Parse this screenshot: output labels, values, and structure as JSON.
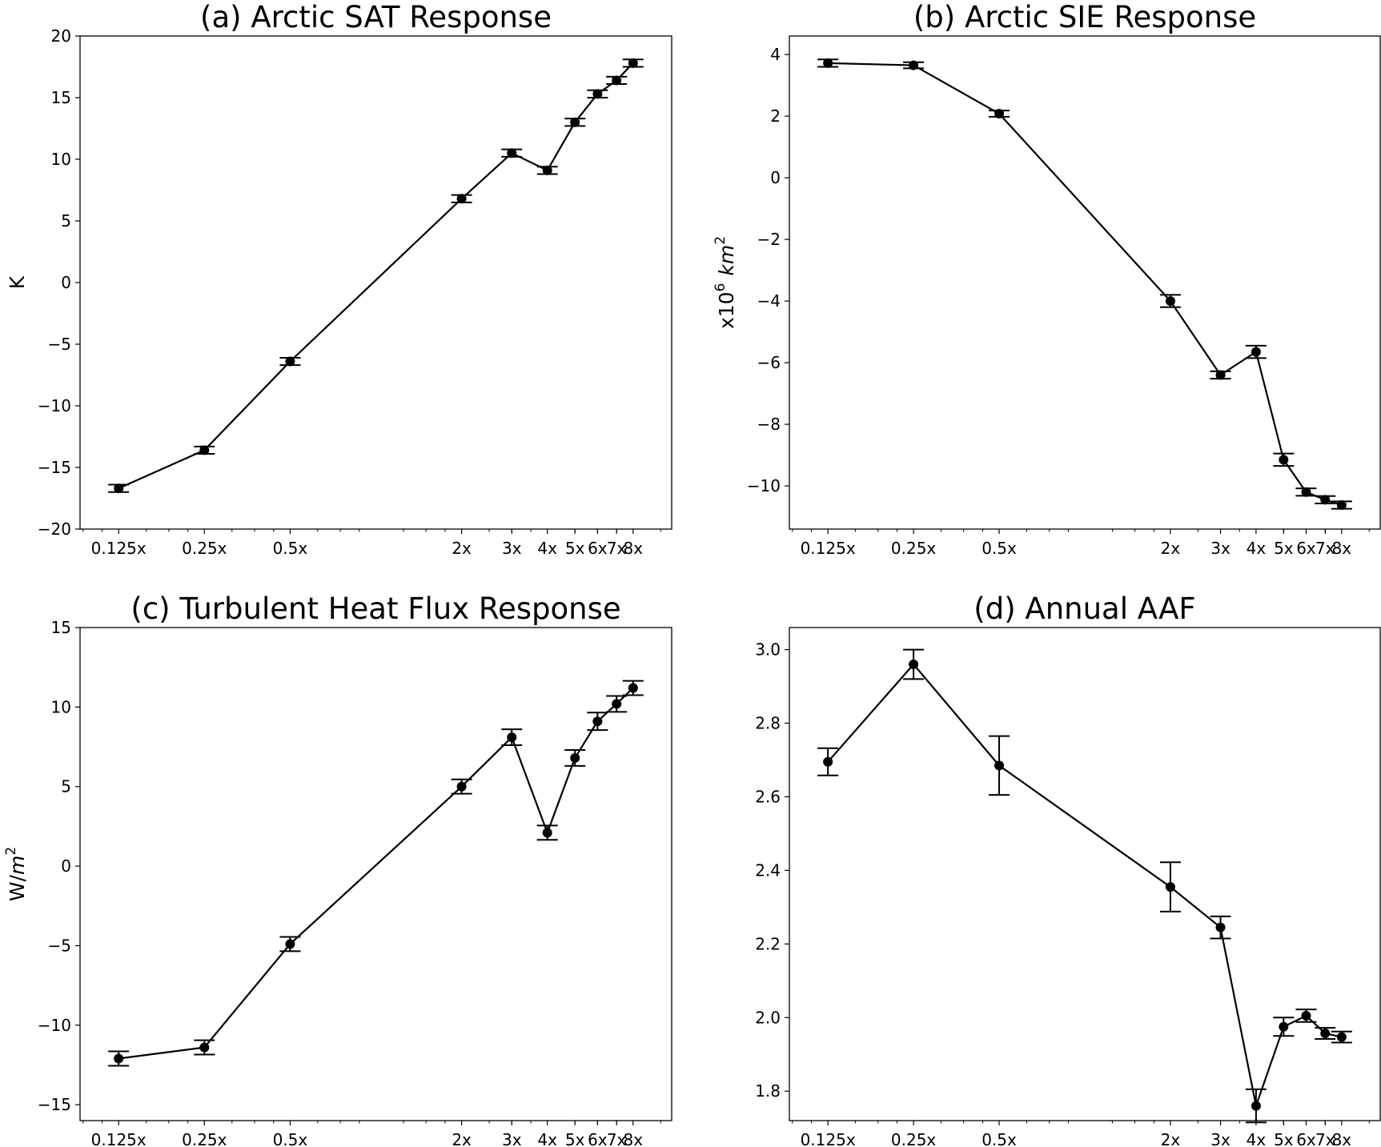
{
  "chart_data": [
    {
      "type": "line",
      "title": "(a) Arctic SAT Response",
      "xlabel": "",
      "ylabel": "K",
      "xscale": "log2",
      "x": [
        0.125,
        0.25,
        0.5,
        2,
        3,
        4,
        5,
        6,
        7,
        8
      ],
      "x_tick_labels": [
        "0.125x",
        "0.25x",
        "0.5x",
        "2x",
        "3x",
        "4x",
        "5x",
        "6x",
        "7x",
        "8x"
      ],
      "ylim": [
        -20,
        20
      ],
      "yticks": [
        -20,
        -15,
        -10,
        -5,
        0,
        5,
        10,
        15,
        20
      ],
      "values": [
        -16.7,
        -13.6,
        -6.4,
        6.8,
        10.5,
        9.1,
        13.0,
        15.3,
        16.4,
        17.8
      ],
      "err": [
        0.3,
        0.3,
        0.3,
        0.3,
        0.3,
        0.3,
        0.3,
        0.3,
        0.3,
        0.3
      ],
      "grid": false
    },
    {
      "type": "line",
      "title": "(b) Arctic SIE Response",
      "xlabel": "",
      "ylabel": "x10",
      "ylabel_sup": "6",
      "ylabel_unit": "km",
      "ylabel_unit_sup": "2",
      "xscale": "log2",
      "x": [
        0.125,
        0.25,
        0.5,
        2,
        3,
        4,
        5,
        6,
        7,
        8
      ],
      "x_tick_labels": [
        "0.125x",
        "0.25x",
        "0.5x",
        "2x",
        "3x",
        "4x",
        "5x",
        "6x",
        "7x",
        "8x"
      ],
      "ylim": [
        -11.4,
        4.6
      ],
      "yticks": [
        -10,
        -8,
        -6,
        -4,
        -2,
        0,
        2,
        4
      ],
      "values": [
        3.72,
        3.65,
        2.08,
        -4.0,
        -6.4,
        -5.65,
        -9.15,
        -10.2,
        -10.45,
        -10.62
      ],
      "err": [
        0.12,
        0.1,
        0.1,
        0.2,
        0.12,
        0.2,
        0.2,
        0.12,
        0.12,
        0.12
      ],
      "grid": false
    },
    {
      "type": "line",
      "title": "(c) Turbulent Heat Flux Response",
      "xlabel": "",
      "ylabel": "W/",
      "ylabel_unit": "m",
      "ylabel_unit_sup": "2",
      "xscale": "log2",
      "x": [
        0.125,
        0.25,
        0.5,
        2,
        3,
        4,
        5,
        6,
        7,
        8
      ],
      "x_tick_labels": [
        "0.125x",
        "0.25x",
        "0.5x",
        "2x",
        "3x",
        "4x",
        "5x",
        "6x",
        "7x",
        "8x"
      ],
      "ylim": [
        -16,
        15
      ],
      "yticks": [
        -15,
        -10,
        -5,
        0,
        5,
        10,
        15
      ],
      "values": [
        -12.1,
        -11.4,
        -4.9,
        5.0,
        8.1,
        2.1,
        6.8,
        9.1,
        10.2,
        11.2
      ],
      "err": [
        0.45,
        0.45,
        0.45,
        0.45,
        0.5,
        0.45,
        0.5,
        0.55,
        0.5,
        0.45
      ],
      "grid": false
    },
    {
      "type": "line",
      "title": "(d) Annual AAF",
      "xlabel": "",
      "ylabel": "",
      "xscale": "log2",
      "x": [
        0.125,
        0.25,
        0.5,
        2,
        3,
        4,
        5,
        6,
        7,
        8
      ],
      "x_tick_labels": [
        "0.125x",
        "0.25x",
        "0.5x",
        "2x",
        "3x",
        "4x",
        "5x",
        "6x",
        "7x",
        "8x"
      ],
      "ylim": [
        1.72,
        3.06
      ],
      "yticks": [
        1.8,
        2.0,
        2.2,
        2.4,
        2.6,
        2.8,
        3.0
      ],
      "ytick_decimals": 1,
      "values": [
        2.695,
        2.96,
        2.685,
        2.355,
        2.245,
        1.76,
        1.975,
        2.005,
        1.957,
        1.947
      ],
      "err": [
        0.037,
        0.04,
        0.08,
        0.067,
        0.03,
        0.045,
        0.025,
        0.017,
        0.015,
        0.015
      ],
      "grid": false
    }
  ]
}
